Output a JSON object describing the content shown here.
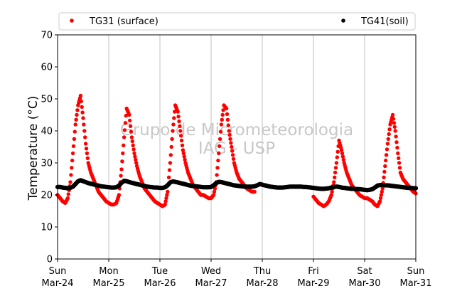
{
  "chart_data": {
    "type": "scatter",
    "title": "",
    "xlabel": "",
    "ylabel": "Temperature (°C)",
    "ylim": [
      0,
      70
    ],
    "yticks": [
      0,
      10,
      20,
      30,
      40,
      50,
      60,
      70
    ],
    "xlim": [
      0,
      7
    ],
    "xticks": [
      {
        "x": 0,
        "day": "Sun",
        "date": "Mar-24"
      },
      {
        "x": 1,
        "day": "Mon",
        "date": "Mar-25"
      },
      {
        "x": 2,
        "day": "Tue",
        "date": "Mar-26"
      },
      {
        "x": 3,
        "day": "Wed",
        "date": "Mar-27"
      },
      {
        "x": 4,
        "day": "Thu",
        "date": "Mar-28"
      },
      {
        "x": 5,
        "day": "Fri",
        "date": "Mar-29"
      },
      {
        "x": 6,
        "day": "Sat",
        "date": "Mar-30"
      },
      {
        "x": 7,
        "day": "Sun",
        "date": "Mar-31"
      }
    ],
    "x_units": "days from Sun Mar-24 00:00",
    "grid": "vertical",
    "legend_placement": "top",
    "watermark": [
      "Grupo de Micrometeorologia",
      "IAG - USP"
    ],
    "series": [
      {
        "name": "TG31 (surface)",
        "color": "#ff0000",
        "segments": [
          {
            "x": [
              0.0,
              0.05,
              0.1,
              0.15,
              0.2,
              0.25,
              0.3,
              0.35,
              0.4,
              0.45,
              0.5,
              0.55,
              0.6,
              0.65,
              0.7,
              0.75,
              0.8,
              0.85,
              0.9,
              0.95,
              1.0,
              1.05,
              1.1,
              1.15,
              1.2,
              1.25,
              1.3,
              1.35,
              1.4,
              1.45,
              1.5,
              1.55,
              1.6,
              1.65,
              1.7,
              1.75,
              1.8,
              1.85,
              1.9,
              1.95,
              2.0,
              2.05,
              2.1,
              2.15,
              2.2,
              2.25,
              2.3,
              2.35,
              2.4,
              2.45,
              2.5,
              2.55,
              2.6,
              2.65,
              2.7,
              2.75,
              2.8,
              2.85,
              2.9,
              2.95,
              3.0,
              3.05,
              3.1,
              3.15,
              3.2,
              3.25,
              3.3,
              3.35,
              3.4,
              3.45,
              3.5,
              3.55,
              3.6,
              3.65,
              3.7,
              3.75,
              3.8,
              3.85
            ],
            "y": [
              20,
              19,
              18,
              17.5,
              19,
              24,
              33,
              42,
              48,
              51,
              44,
              36,
              30,
              27,
              25,
              23,
              21,
              20,
              19,
              18,
              17.5,
              17,
              17,
              17.5,
              20,
              28,
              38,
              47,
              45,
              38,
              33,
              29,
              26,
              24,
              22,
              21,
              20,
              19,
              18,
              17.5,
              17,
              16.5,
              17,
              21,
              30,
              40,
              48,
              46,
              40,
              34,
              30,
              27,
              25,
              23,
              22,
              21,
              20,
              20,
              19.5,
              19,
              19,
              20,
              24,
              33,
              42,
              48,
              47,
              40,
              35,
              30,
              27,
              25,
              24,
              23,
              22,
              21.5,
              21,
              21
            ]
          },
          {
            "x": [
              5.0,
              5.05,
              5.1,
              5.15,
              5.2,
              5.25,
              5.3,
              5.35,
              5.4,
              5.45,
              5.5,
              5.55,
              5.6,
              5.65,
              5.7,
              5.75,
              5.8,
              5.85,
              5.9,
              5.95,
              6.0,
              6.05,
              6.1,
              6.15,
              6.2,
              6.25,
              6.3,
              6.35,
              6.4,
              6.45,
              6.5,
              6.55,
              6.6,
              6.65,
              6.7,
              6.75,
              6.8,
              6.85,
              6.9,
              6.95,
              7.0
            ],
            "y": [
              19.5,
              18.5,
              17.5,
              17,
              16.5,
              17,
              18,
              20,
              24,
              30,
              37,
              34,
              30,
              27,
              25,
              23,
              22,
              21,
              20,
              19.5,
              19,
              19,
              18.5,
              18,
              17,
              16.5,
              18,
              22,
              29,
              36,
              42,
              45,
              40,
              33,
              27,
              25,
              24,
              23,
              22,
              21,
              20.5
            ]
          }
        ]
      },
      {
        "name": "TG41(soil)",
        "color": "#000000",
        "segments": [
          {
            "x": [
              0.0,
              0.05,
              0.1,
              0.15,
              0.2,
              0.25,
              0.3,
              0.35,
              0.4,
              0.45,
              0.5,
              0.55,
              0.6,
              0.65,
              0.7,
              0.75,
              0.8,
              0.85,
              0.9,
              0.95,
              1.0,
              1.05,
              1.1,
              1.15,
              1.2,
              1.25,
              1.3,
              1.35,
              1.4,
              1.45,
              1.5,
              1.55,
              1.6,
              1.65,
              1.7,
              1.75,
              1.8,
              1.85,
              1.9,
              1.95,
              2.0,
              2.05,
              2.1,
              2.15,
              2.2,
              2.25,
              2.3,
              2.35,
              2.4,
              2.45,
              2.5,
              2.55,
              2.6,
              2.65,
              2.7,
              2.75,
              2.8,
              2.85,
              2.9,
              2.95,
              3.0,
              3.05,
              3.1,
              3.15,
              3.2,
              3.25,
              3.3,
              3.35,
              3.4,
              3.45,
              3.5,
              3.55,
              3.6,
              3.65,
              3.7,
              3.75,
              3.8,
              3.85,
              3.9,
              3.95,
              4.0,
              4.05,
              4.1,
              4.15,
              4.2,
              4.25,
              4.3,
              4.35,
              4.4,
              4.45,
              4.5,
              4.55,
              4.6,
              4.65,
              4.7,
              4.75,
              4.8,
              4.85,
              4.9,
              4.95,
              5.0,
              5.05,
              5.1,
              5.15,
              5.2,
              5.25,
              5.3,
              5.35,
              5.4,
              5.45,
              5.5,
              5.55,
              5.6,
              5.65,
              5.7,
              5.75,
              5.8,
              5.85,
              5.9,
              5.95,
              6.0,
              6.05,
              6.1,
              6.15,
              6.2,
              6.25,
              6.3,
              6.35,
              6.4,
              6.45,
              6.5,
              6.55,
              6.6,
              6.65,
              6.7,
              6.75,
              6.8,
              6.85,
              6.9,
              6.95,
              7.0
            ],
            "y": [
              22.5,
              22.5,
              22.3,
              22.2,
              22.1,
              22.2,
              22.6,
              23.4,
              24.3,
              24.6,
              24.3,
              24.0,
              23.7,
              23.5,
              23.3,
              23.1,
              22.9,
              22.7,
              22.6,
              22.5,
              22.4,
              22.3,
              22.3,
              22.4,
              22.9,
              23.8,
              24.4,
              24.3,
              24.0,
              23.8,
              23.6,
              23.4,
              23.2,
              23.0,
              22.8,
              22.6,
              22.5,
              22.4,
              22.3,
              22.3,
              22.2,
              22.2,
              22.4,
              23.0,
              23.9,
              24.2,
              24.1,
              23.9,
              23.7,
              23.5,
              23.3,
              23.1,
              22.9,
              22.8,
              22.7,
              22.6,
              22.5,
              22.4,
              22.4,
              22.4,
              22.5,
              23.0,
              23.7,
              24.1,
              24.0,
              23.8,
              23.6,
              23.4,
              23.2,
              23.0,
              22.9,
              22.8,
              22.7,
              22.6,
              22.6,
              22.6,
              22.6,
              22.7,
              23.0,
              23.4,
              23.2,
              23.0,
              22.8,
              22.6,
              22.5,
              22.4,
              22.3,
              22.3,
              22.3,
              22.4,
              22.5,
              22.6,
              22.6,
              22.6,
              22.6,
              22.6,
              22.5,
              22.5,
              22.4,
              22.3,
              22.2,
              22.1,
              22.0,
              21.9,
              21.9,
              22.0,
              22.1,
              22.3,
              22.5,
              22.6,
              22.5,
              22.3,
              22.2,
              22.1,
              22.0,
              21.9,
              21.9,
              21.8,
              21.8,
              21.7,
              21.6,
              21.5,
              21.6,
              21.8,
              22.3,
              22.9,
              23.1,
              23.1,
              23.0,
              23.0,
              22.9,
              22.8,
              22.7,
              22.6,
              22.5,
              22.4,
              22.3,
              22.2,
              22.2,
              22.1,
              22.1
            ]
          }
        ]
      }
    ]
  }
}
